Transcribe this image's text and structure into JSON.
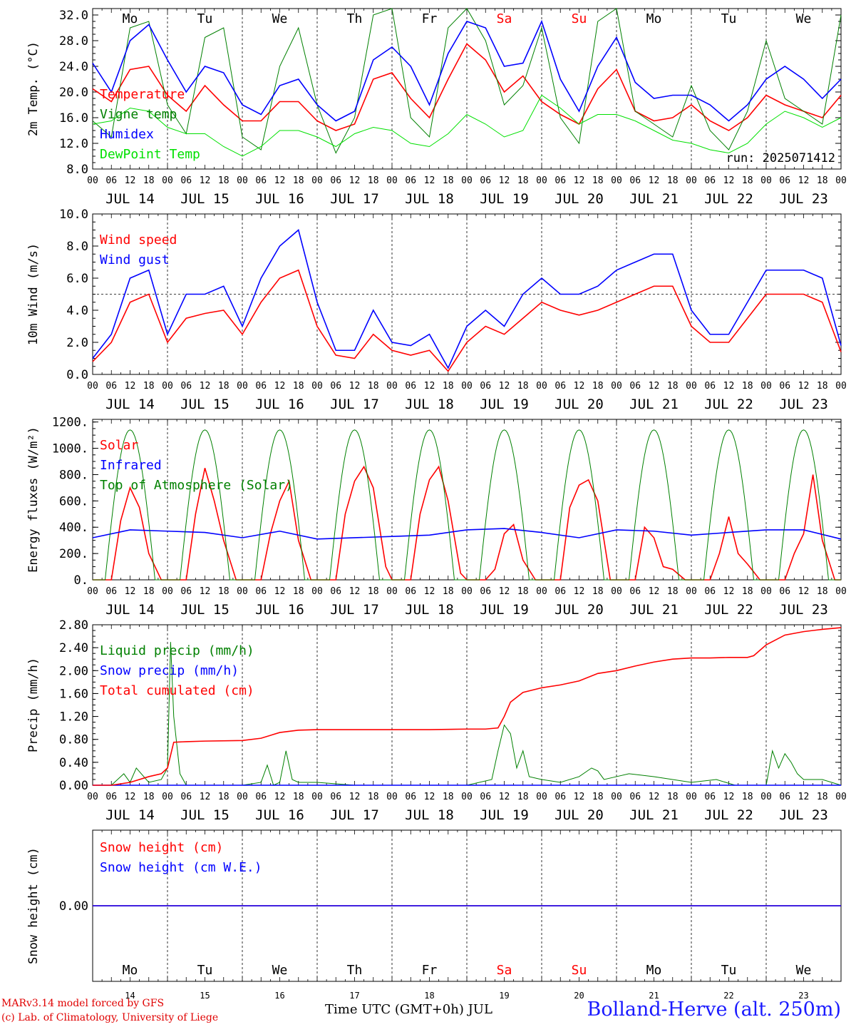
{
  "footer": {
    "model": "MARv3.14 model forced by GFS",
    "credit": "(c) Lab. of Climatology, University of Liege",
    "xaxis_title": "Time UTC (GMT+0h) JUL",
    "station": "Bolland-Herve (alt. 250m)"
  },
  "run_label": "run: 2025071412",
  "colors": {
    "red": "#ff0000",
    "blue": "#0000ff",
    "green": "#008000",
    "lightgreen": "#00e000",
    "weekend": "#ff0000"
  },
  "days": [
    {
      "abbr": "Mo",
      "date": "JUL 14",
      "num": "14",
      "weekend": false
    },
    {
      "abbr": "Tu",
      "date": "JUL 15",
      "num": "15",
      "weekend": false
    },
    {
      "abbr": "We",
      "date": "JUL 16",
      "num": "16",
      "weekend": false
    },
    {
      "abbr": "Th",
      "date": "JUL 17",
      "num": "17",
      "weekend": false
    },
    {
      "abbr": "Fr",
      "date": "JUL 18",
      "num": "18",
      "weekend": false
    },
    {
      "abbr": "Sa",
      "date": "JUL 19",
      "num": "19",
      "weekend": true
    },
    {
      "abbr": "Su",
      "date": "JUL 20",
      "num": "20",
      "weekend": true
    },
    {
      "abbr": "Mo",
      "date": "JUL 21",
      "num": "21",
      "weekend": false
    },
    {
      "abbr": "Tu",
      "date": "JUL 22",
      "num": "22",
      "weekend": false
    },
    {
      "abbr": "We",
      "date": "JUL 23",
      "num": "23",
      "weekend": false
    }
  ],
  "hour_ticks": [
    "00",
    "06",
    "12",
    "18"
  ],
  "chart_data": [
    {
      "type": "line",
      "ylabel": "2m Temp. (°C)",
      "ylim": [
        8,
        33
      ],
      "yticks": [
        "8.0",
        "12.0",
        "16.0",
        "20.0",
        "24.0",
        "28.0",
        "32.0"
      ],
      "x_unit": "hours since JUL 14 00 UTC",
      "series": [
        {
          "name": "Temperature",
          "color": "red",
          "x": [
            0,
            6,
            12,
            18,
            24,
            30,
            36,
            42,
            48,
            54,
            60,
            66,
            72,
            78,
            84,
            90,
            96,
            102,
            108,
            114,
            120,
            126,
            132,
            138,
            144,
            150,
            156,
            162,
            168,
            174,
            180,
            186,
            192,
            198,
            204,
            210,
            216,
            222,
            228,
            234,
            240
          ],
          "values": [
            20.5,
            18.5,
            23.5,
            24,
            19.5,
            17,
            21,
            18,
            15.5,
            15.5,
            18.5,
            18.5,
            15.5,
            14,
            15,
            22,
            23,
            19,
            16,
            22,
            27.5,
            25,
            20,
            22.5,
            18.5,
            16.5,
            15,
            20.5,
            23.5,
            17,
            15.5,
            16,
            18,
            15.5,
            14,
            16,
            19.5,
            18,
            17,
            16,
            19.5
          ]
        },
        {
          "name": "Vigne temp",
          "color": "green",
          "x": [
            0,
            6,
            12,
            18,
            24,
            30,
            36,
            42,
            48,
            54,
            60,
            66,
            72,
            78,
            84,
            90,
            96,
            102,
            108,
            114,
            120,
            126,
            132,
            138,
            144,
            150,
            156,
            162,
            168,
            174,
            180,
            186,
            192,
            198,
            204,
            210,
            216,
            222,
            228,
            234,
            240
          ],
          "values": [
            15.5,
            13,
            30,
            31,
            18,
            13.5,
            28.5,
            30,
            13,
            11,
            24,
            30,
            18,
            10.5,
            16,
            32,
            34,
            16,
            13,
            30,
            34,
            28,
            18,
            21,
            30,
            16,
            12,
            31,
            33.5,
            17,
            15,
            13,
            21,
            14,
            11,
            17,
            28,
            19,
            17,
            15,
            32
          ]
        },
        {
          "name": "Humidex",
          "color": "blue",
          "x": [
            0,
            6,
            12,
            18,
            24,
            30,
            36,
            42,
            48,
            54,
            60,
            66,
            72,
            78,
            84,
            90,
            96,
            102,
            108,
            114,
            120,
            126,
            132,
            138,
            144,
            150,
            156,
            162,
            168,
            174,
            180,
            186,
            192,
            198,
            204,
            210,
            216,
            222,
            228,
            234,
            240
          ],
          "values": [
            24.5,
            20,
            28,
            30.5,
            25,
            20,
            24,
            23,
            18,
            16.5,
            21,
            22,
            18,
            15.5,
            17,
            25,
            27,
            24,
            18,
            26,
            31,
            30,
            24,
            24.5,
            31,
            22,
            17,
            24,
            28.5,
            21.5,
            19,
            19.5,
            19.5,
            18,
            15.5,
            18,
            22,
            24,
            22,
            19,
            22
          ]
        },
        {
          "name": "DewPoint Temp",
          "color": "lightgreen",
          "x": [
            0,
            6,
            12,
            18,
            24,
            30,
            36,
            42,
            48,
            54,
            60,
            66,
            72,
            78,
            84,
            90,
            96,
            102,
            108,
            114,
            120,
            126,
            132,
            138,
            144,
            150,
            156,
            162,
            168,
            174,
            180,
            186,
            192,
            198,
            204,
            210,
            216,
            222,
            228,
            234,
            240
          ],
          "values": [
            15,
            15.5,
            17.5,
            17,
            14.5,
            13.5,
            13.5,
            11.5,
            10,
            11.5,
            14,
            14,
            13,
            11.5,
            13.5,
            14.5,
            14,
            12,
            11.5,
            13.5,
            16.5,
            15,
            13,
            14,
            19.5,
            17.5,
            15,
            16.5,
            16.5,
            15.5,
            14,
            12.5,
            12,
            11,
            10.5,
            12,
            15,
            17,
            16,
            14.5,
            16
          ]
        }
      ]
    },
    {
      "type": "line",
      "ylabel": "10m Wind (m/s)",
      "ylim": [
        0,
        10
      ],
      "yticks": [
        "0.0",
        "2.0",
        "4.0",
        "6.0",
        "8.0",
        "10.0"
      ],
      "reference_line": 5,
      "series": [
        {
          "name": "Wind speed",
          "color": "red",
          "x": [
            0,
            6,
            12,
            18,
            24,
            30,
            36,
            42,
            48,
            54,
            60,
            66,
            72,
            78,
            84,
            90,
            96,
            102,
            108,
            114,
            120,
            126,
            132,
            138,
            144,
            150,
            156,
            162,
            168,
            174,
            180,
            186,
            192,
            198,
            204,
            210,
            216,
            222,
            228,
            234,
            240
          ],
          "values": [
            0.8,
            2,
            4.5,
            5,
            2,
            3.5,
            3.8,
            4,
            2.5,
            4.5,
            6,
            6.5,
            3,
            1.2,
            1,
            2.5,
            1.5,
            1.2,
            1.5,
            0.2,
            2,
            3,
            2.5,
            3.5,
            4.5,
            4,
            3.7,
            4,
            4.5,
            5,
            5.5,
            5.5,
            3,
            2,
            2,
            3.5,
            5,
            5,
            5,
            4.5,
            1.4
          ]
        },
        {
          "name": "Wind gust",
          "color": "blue",
          "x": [
            0,
            6,
            12,
            18,
            24,
            30,
            36,
            42,
            48,
            54,
            60,
            66,
            72,
            78,
            84,
            90,
            96,
            102,
            108,
            114,
            120,
            126,
            132,
            138,
            144,
            150,
            156,
            162,
            168,
            174,
            180,
            186,
            192,
            198,
            204,
            210,
            216,
            222,
            228,
            234,
            240
          ],
          "values": [
            1,
            2.5,
            6,
            6.5,
            2.5,
            5,
            5,
            5.5,
            3,
            6,
            8,
            9,
            4.5,
            1.5,
            1.5,
            4,
            2,
            1.8,
            2.5,
            0.4,
            3,
            4,
            3,
            5,
            6,
            5,
            5,
            5.5,
            6.5,
            7,
            7.5,
            7.5,
            4,
            2.5,
            2.5,
            4.5,
            6.5,
            6.5,
            6.5,
            6,
            1.8
          ]
        }
      ]
    },
    {
      "type": "line",
      "ylabel": "Energy fluxes (W/m²)",
      "ylim": [
        0,
        1220
      ],
      "yticks": [
        "0.",
        "200.",
        "400.",
        "600.",
        "800.",
        "1000.",
        "1200."
      ],
      "series": [
        {
          "name": "Solar",
          "color": "red",
          "x": [
            0,
            6,
            9,
            12,
            15,
            18,
            22,
            24,
            30,
            33,
            36,
            39,
            42,
            46,
            48,
            54,
            57,
            60,
            63,
            66,
            70,
            72,
            78,
            81,
            84,
            87,
            90,
            94,
            96,
            102,
            105,
            108,
            111,
            114,
            118,
            120,
            126,
            129,
            132,
            135,
            138,
            142,
            144,
            150,
            153,
            156,
            159,
            162,
            166,
            168,
            174,
            177,
            180,
            183,
            186,
            190,
            192,
            198,
            201,
            204,
            207,
            210,
            214,
            216,
            222,
            225,
            228,
            231,
            234,
            238,
            240
          ],
          "values": [
            0,
            0,
            450,
            700,
            550,
            200,
            0,
            0,
            0,
            500,
            850,
            600,
            300,
            0,
            0,
            0,
            350,
            600,
            750,
            300,
            0,
            0,
            0,
            500,
            750,
            860,
            700,
            100,
            0,
            0,
            500,
            760,
            860,
            600,
            50,
            0,
            0,
            80,
            350,
            420,
            150,
            0,
            0,
            0,
            550,
            720,
            760,
            600,
            0,
            0,
            0,
            400,
            320,
            100,
            80,
            0,
            0,
            0,
            200,
            480,
            200,
            120,
            0,
            0,
            0,
            200,
            350,
            800,
            300,
            0,
            0
          ]
        },
        {
          "name": "Infrared",
          "color": "blue",
          "x": [
            0,
            12,
            24,
            36,
            48,
            60,
            72,
            84,
            96,
            108,
            120,
            132,
            144,
            156,
            168,
            180,
            192,
            204,
            216,
            228,
            240
          ],
          "values": [
            320,
            380,
            370,
            360,
            320,
            370,
            310,
            320,
            330,
            340,
            380,
            390,
            360,
            320,
            380,
            370,
            340,
            360,
            380,
            380,
            310
          ]
        },
        {
          "name": "Top of Atmosphere (Solar)",
          "color": "green",
          "x": "diurnal-sine",
          "peak": 1140,
          "sunrise_hour": 4,
          "sunset_hour": 20
        }
      ]
    },
    {
      "type": "line",
      "ylabel": "Precip (mm/h)",
      "ylim": [
        0,
        2.8
      ],
      "yticks": [
        "0.00",
        "0.40",
        "0.80",
        "1.20",
        "1.60",
        "2.00",
        "2.40",
        "2.80"
      ],
      "series": [
        {
          "name": "Liquid precip (mm/h)",
          "color": "green",
          "x": [
            0,
            6,
            10,
            12,
            14,
            18,
            22,
            24,
            25,
            26,
            28,
            30,
            36,
            48,
            54,
            56,
            58,
            60,
            62,
            64,
            66,
            72,
            84,
            96,
            108,
            120,
            128,
            130,
            132,
            134,
            136,
            138,
            140,
            144,
            150,
            156,
            160,
            162,
            164,
            168,
            172,
            180,
            192,
            200,
            206,
            216,
            218,
            220,
            222,
            224,
            226,
            228,
            234,
            240
          ],
          "values": [
            0,
            0,
            0.2,
            0.05,
            0.3,
            0.05,
            0.1,
            0.3,
            2.5,
            1.2,
            0.2,
            0,
            0,
            0,
            0.05,
            0.35,
            0,
            0.05,
            0.6,
            0.1,
            0.05,
            0.05,
            0,
            0,
            0,
            0,
            0.1,
            0.6,
            1.05,
            0.9,
            0.3,
            0.6,
            0.15,
            0.1,
            0.05,
            0.15,
            0.3,
            0.25,
            0.1,
            0.15,
            0.2,
            0.15,
            0.05,
            0.1,
            0,
            0,
            0.6,
            0.3,
            0.55,
            0.4,
            0.2,
            0.1,
            0.1,
            0
          ]
        },
        {
          "name": "Snow precip (mm/h)",
          "color": "blue",
          "x": [
            0,
            240
          ],
          "values": [
            0,
            0
          ]
        },
        {
          "name": "Total cumulated (cm)",
          "color": "red",
          "x": [
            0,
            6,
            12,
            18,
            22,
            24,
            26,
            30,
            36,
            48,
            54,
            60,
            66,
            72,
            84,
            96,
            108,
            120,
            126,
            130,
            132,
            134,
            138,
            144,
            150,
            156,
            162,
            168,
            174,
            180,
            186,
            192,
            198,
            204,
            210,
            212,
            216,
            222,
            228,
            234,
            240
          ],
          "values": [
            0,
            0,
            0.05,
            0.15,
            0.2,
            0.3,
            0.75,
            0.76,
            0.77,
            0.78,
            0.82,
            0.92,
            0.96,
            0.97,
            0.97,
            0.97,
            0.97,
            0.98,
            0.98,
            1.0,
            1.2,
            1.45,
            1.62,
            1.7,
            1.75,
            1.82,
            1.95,
            2.0,
            2.08,
            2.15,
            2.2,
            2.22,
            2.22,
            2.23,
            2.23,
            2.26,
            2.45,
            2.62,
            2.68,
            2.72,
            2.75
          ]
        }
      ]
    },
    {
      "type": "line",
      "ylabel": "Snow height (cm)",
      "ylim": [
        -1,
        1
      ],
      "yticks": [
        "0.00"
      ],
      "series": [
        {
          "name": "Snow height (cm)",
          "color": "red",
          "x": [
            0,
            240
          ],
          "values": [
            0,
            0
          ]
        },
        {
          "name": "Snow height (cm W.E.)",
          "color": "blue",
          "x": [
            0,
            240
          ],
          "values": [
            0,
            0
          ]
        }
      ]
    }
  ]
}
